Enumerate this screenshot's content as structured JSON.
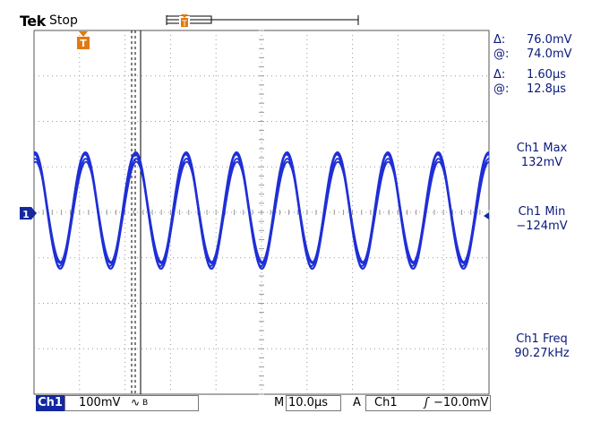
{
  "header": {
    "brand": "Tek",
    "status": "Stop"
  },
  "cursor_readout": {
    "delta_v_label": "Δ:",
    "delta_v": "76.0mV",
    "at_v_label": "@:",
    "at_v": "74.0mV",
    "delta_t_label": "Δ:",
    "delta_t": "1.60µs",
    "at_t_label": "@:",
    "at_t": "12.8µs"
  },
  "measurements": [
    {
      "label": "Ch1 Max",
      "value": "132mV"
    },
    {
      "label": "Ch1 Min",
      "value": "−124mV"
    },
    {
      "label": "Ch1 Freq",
      "value": "90.27kHz"
    }
  ],
  "status_bar": {
    "channel": "Ch1",
    "volts_div": "100mV",
    "coupling_symbol": "∿",
    "bw_symbol": "B",
    "timebase_label": "M",
    "timebase": "10.0µs",
    "trigger_mode": "A",
    "trigger_source": "Ch1",
    "trigger_edge": "ʃ",
    "trigger_level": "−10.0mV"
  },
  "markers": {
    "trigger_marker": "T",
    "channel_marker": "1"
  },
  "colors": {
    "trace": "#1f2fd6",
    "readout_text": "#0a1a7a",
    "grid": "#9a9a9a",
    "channel_badge": "#1428a0"
  },
  "waveform": {
    "frequency_khz": 90.27,
    "max_mv": 132,
    "min_mv": -124,
    "volts_per_div_mv": 100,
    "time_per_div_us": 10.0
  }
}
